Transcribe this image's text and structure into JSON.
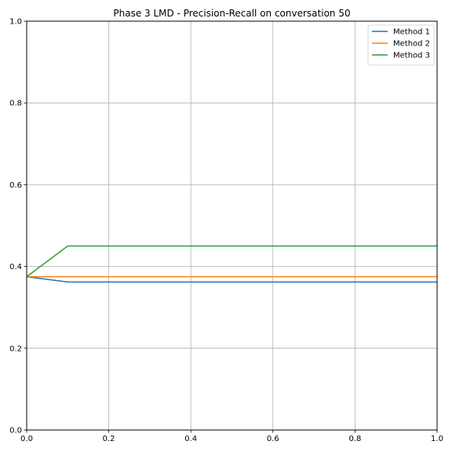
{
  "chart_data": {
    "type": "line",
    "title": "Phase 3 LMD - Precision-Recall on conversation 50",
    "xlabel": "",
    "ylabel": "",
    "xlim": [
      0,
      1
    ],
    "ylim": [
      0,
      1
    ],
    "xticks": [
      "0.0",
      "0.2",
      "0.4",
      "0.6",
      "0.8",
      "1.0"
    ],
    "yticks": [
      "0.0",
      "0.2",
      "0.4",
      "0.6",
      "0.8",
      "1.0"
    ],
    "grid": true,
    "legend_position": "top-right",
    "x": [
      0.0,
      0.1,
      0.2,
      0.3,
      0.4,
      0.5,
      0.6,
      0.7,
      0.8,
      0.9,
      1.0
    ],
    "series": [
      {
        "name": "Method 1",
        "color": "#1f77b4",
        "values": [
          0.375,
          0.362,
          0.362,
          0.362,
          0.362,
          0.362,
          0.362,
          0.362,
          0.362,
          0.362,
          0.362
        ]
      },
      {
        "name": "Method 2",
        "color": "#ff7f0e",
        "values": [
          0.375,
          0.375,
          0.375,
          0.375,
          0.375,
          0.375,
          0.375,
          0.375,
          0.375,
          0.375,
          0.375
        ]
      },
      {
        "name": "Method 3",
        "color": "#2ca02c",
        "values": [
          0.375,
          0.45,
          0.45,
          0.45,
          0.45,
          0.45,
          0.45,
          0.45,
          0.45,
          0.45,
          0.45
        ]
      }
    ]
  }
}
